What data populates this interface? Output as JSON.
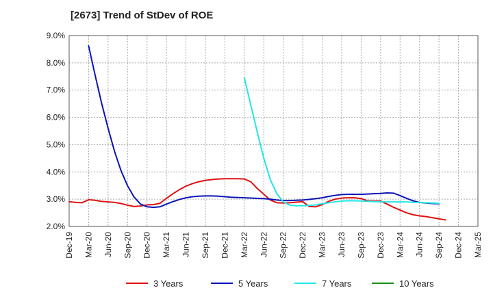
{
  "chart_data": {
    "type": "line",
    "title": "[2673]  Trend of StDev of ROE",
    "xlabel": "",
    "ylabel": "",
    "x_ticks": [
      "Dec-19",
      "Mar-20",
      "Jun-20",
      "Sep-20",
      "Dec-20",
      "Mar-21",
      "Jun-21",
      "Sep-21",
      "Dec-21",
      "Mar-22",
      "Jun-22",
      "Sep-22",
      "Dec-22",
      "Mar-23",
      "Jun-23",
      "Sep-23",
      "Dec-23",
      "Mar-24",
      "Jun-24",
      "Sep-24",
      "Dec-24",
      "Mar-25"
    ],
    "y_ticks": [
      "2.0%",
      "3.0%",
      "4.0%",
      "5.0%",
      "6.0%",
      "7.0%",
      "8.0%",
      "9.0%"
    ],
    "ylim": [
      2.0,
      9.0
    ],
    "grid": true,
    "legend_position": "bottom",
    "series": [
      {
        "name": "3 Years",
        "color": "#dd1111",
        "points": [
          [
            "Dec-19",
            2.91
          ],
          [
            "Jan-20",
            2.88
          ],
          [
            "Feb-20",
            2.87
          ],
          [
            "Mar-20",
            2.98
          ],
          [
            "Apr-20",
            2.96
          ],
          [
            "May-20",
            2.92
          ],
          [
            "Jun-20",
            2.9
          ],
          [
            "Jul-20",
            2.88
          ],
          [
            "Aug-20",
            2.84
          ],
          [
            "Sep-20",
            2.78
          ],
          [
            "Oct-20",
            2.73
          ],
          [
            "Nov-20",
            2.75
          ],
          [
            "Dec-20",
            2.79
          ],
          [
            "Jan-21",
            2.8
          ],
          [
            "Feb-21",
            2.85
          ],
          [
            "Mar-21",
            3.03
          ],
          [
            "Apr-21",
            3.2
          ],
          [
            "May-21",
            3.35
          ],
          [
            "Jun-21",
            3.48
          ],
          [
            "Jul-21",
            3.57
          ],
          [
            "Aug-21",
            3.64
          ],
          [
            "Sep-21",
            3.69
          ],
          [
            "Oct-21",
            3.72
          ],
          [
            "Nov-21",
            3.74
          ],
          [
            "Dec-21",
            3.75
          ],
          [
            "Jan-22",
            3.75
          ],
          [
            "Feb-22",
            3.75
          ],
          [
            "Mar-22",
            3.74
          ],
          [
            "Apr-22",
            3.64
          ],
          [
            "May-22",
            3.39
          ],
          [
            "Jun-22",
            3.18
          ],
          [
            "Jul-22",
            2.97
          ],
          [
            "Aug-22",
            2.87
          ],
          [
            "Sep-22",
            2.86
          ],
          [
            "Oct-22",
            2.87
          ],
          [
            "Nov-22",
            2.89
          ],
          [
            "Dec-22",
            2.91
          ],
          [
            "Jan-23",
            2.73
          ],
          [
            "Feb-23",
            2.72
          ],
          [
            "Mar-23",
            2.8
          ],
          [
            "Apr-23",
            2.92
          ],
          [
            "May-23",
            3.0
          ],
          [
            "Jun-23",
            3.04
          ],
          [
            "Jul-23",
            3.05
          ],
          [
            "Aug-23",
            3.05
          ],
          [
            "Sep-23",
            3.02
          ],
          [
            "Oct-23",
            2.94
          ],
          [
            "Nov-23",
            2.93
          ],
          [
            "Dec-23",
            2.93
          ],
          [
            "Jan-24",
            2.82
          ],
          [
            "Feb-24",
            2.7
          ],
          [
            "Mar-24",
            2.6
          ],
          [
            "Apr-24",
            2.5
          ],
          [
            "May-24",
            2.43
          ],
          [
            "Jun-24",
            2.39
          ],
          [
            "Jul-24",
            2.36
          ],
          [
            "Aug-24",
            2.32
          ],
          [
            "Sep-24",
            2.28
          ],
          [
            "Oct-24",
            2.24
          ]
        ]
      },
      {
        "name": "5 Years",
        "color": "#0a14b8",
        "points": [
          [
            "Mar-20",
            8.62
          ],
          [
            "Apr-20",
            7.55
          ],
          [
            "May-20",
            6.52
          ],
          [
            "Jun-20",
            5.6
          ],
          [
            "Jul-20",
            4.75
          ],
          [
            "Aug-20",
            4.04
          ],
          [
            "Sep-20",
            3.49
          ],
          [
            "Oct-20",
            3.08
          ],
          [
            "Nov-20",
            2.82
          ],
          [
            "Dec-20",
            2.72
          ],
          [
            "Jan-21",
            2.7
          ],
          [
            "Feb-21",
            2.72
          ],
          [
            "Mar-21",
            2.82
          ],
          [
            "Apr-21",
            2.91
          ],
          [
            "May-21",
            2.99
          ],
          [
            "Jun-21",
            3.05
          ],
          [
            "Jul-21",
            3.09
          ],
          [
            "Aug-21",
            3.11
          ],
          [
            "Sep-21",
            3.12
          ],
          [
            "Oct-21",
            3.12
          ],
          [
            "Nov-21",
            3.11
          ],
          [
            "Dec-21",
            3.09
          ],
          [
            "Jan-22",
            3.07
          ],
          [
            "Feb-22",
            3.06
          ],
          [
            "Mar-22",
            3.05
          ],
          [
            "Apr-22",
            3.04
          ],
          [
            "May-22",
            3.03
          ],
          [
            "Jun-22",
            3.02
          ],
          [
            "Jul-22",
            3.0
          ],
          [
            "Aug-22",
            2.97
          ],
          [
            "Sep-22",
            2.95
          ],
          [
            "Oct-22",
            2.95
          ],
          [
            "Nov-22",
            2.96
          ],
          [
            "Dec-22",
            2.97
          ],
          [
            "Jan-23",
            2.99
          ],
          [
            "Feb-23",
            3.02
          ],
          [
            "Mar-23",
            3.05
          ],
          [
            "Apr-23",
            3.1
          ],
          [
            "May-23",
            3.14
          ],
          [
            "Jun-23",
            3.17
          ],
          [
            "Jul-23",
            3.18
          ],
          [
            "Aug-23",
            3.18
          ],
          [
            "Sep-23",
            3.18
          ],
          [
            "Oct-23",
            3.19
          ],
          [
            "Nov-23",
            3.2
          ],
          [
            "Dec-23",
            3.21
          ],
          [
            "Jan-24",
            3.23
          ],
          [
            "Feb-24",
            3.22
          ],
          [
            "Mar-24",
            3.13
          ],
          [
            "Apr-24",
            3.03
          ],
          [
            "May-24",
            2.94
          ],
          [
            "Jun-24",
            2.88
          ],
          [
            "Jul-24",
            2.86
          ],
          [
            "Aug-24",
            2.84
          ],
          [
            "Sep-24",
            2.83
          ]
        ]
      },
      {
        "name": "7 Years",
        "color": "#22e6e6",
        "points": [
          [
            "Mar-22",
            7.45
          ],
          [
            "Apr-22",
            6.45
          ],
          [
            "May-22",
            5.45
          ],
          [
            "Jun-22",
            4.5
          ],
          [
            "Jul-22",
            3.72
          ],
          [
            "Aug-22",
            3.2
          ],
          [
            "Sep-22",
            2.9
          ],
          [
            "Oct-22",
            2.78
          ],
          [
            "Nov-22",
            2.76
          ],
          [
            "Dec-22",
            2.76
          ],
          [
            "Jan-23",
            2.77
          ],
          [
            "Feb-23",
            2.79
          ],
          [
            "Mar-23",
            2.83
          ],
          [
            "Apr-23",
            2.87
          ],
          [
            "May-23",
            2.9
          ],
          [
            "Jun-23",
            2.93
          ],
          [
            "Jul-23",
            2.94
          ],
          [
            "Aug-23",
            2.94
          ],
          [
            "Sep-23",
            2.93
          ],
          [
            "Oct-23",
            2.92
          ],
          [
            "Nov-23",
            2.91
          ],
          [
            "Dec-23",
            2.9
          ],
          [
            "Jan-24",
            2.9
          ],
          [
            "Feb-24",
            2.9
          ],
          [
            "Mar-24",
            2.9
          ],
          [
            "Apr-24",
            2.9
          ],
          [
            "May-24",
            2.88
          ],
          [
            "Jun-24",
            2.88
          ],
          [
            "Jul-24",
            2.87
          ],
          [
            "Aug-24",
            2.86
          ],
          [
            "Sep-24",
            2.85
          ]
        ]
      },
      {
        "name": "10 Years",
        "color": "#1a8a1a",
        "points": []
      }
    ]
  }
}
